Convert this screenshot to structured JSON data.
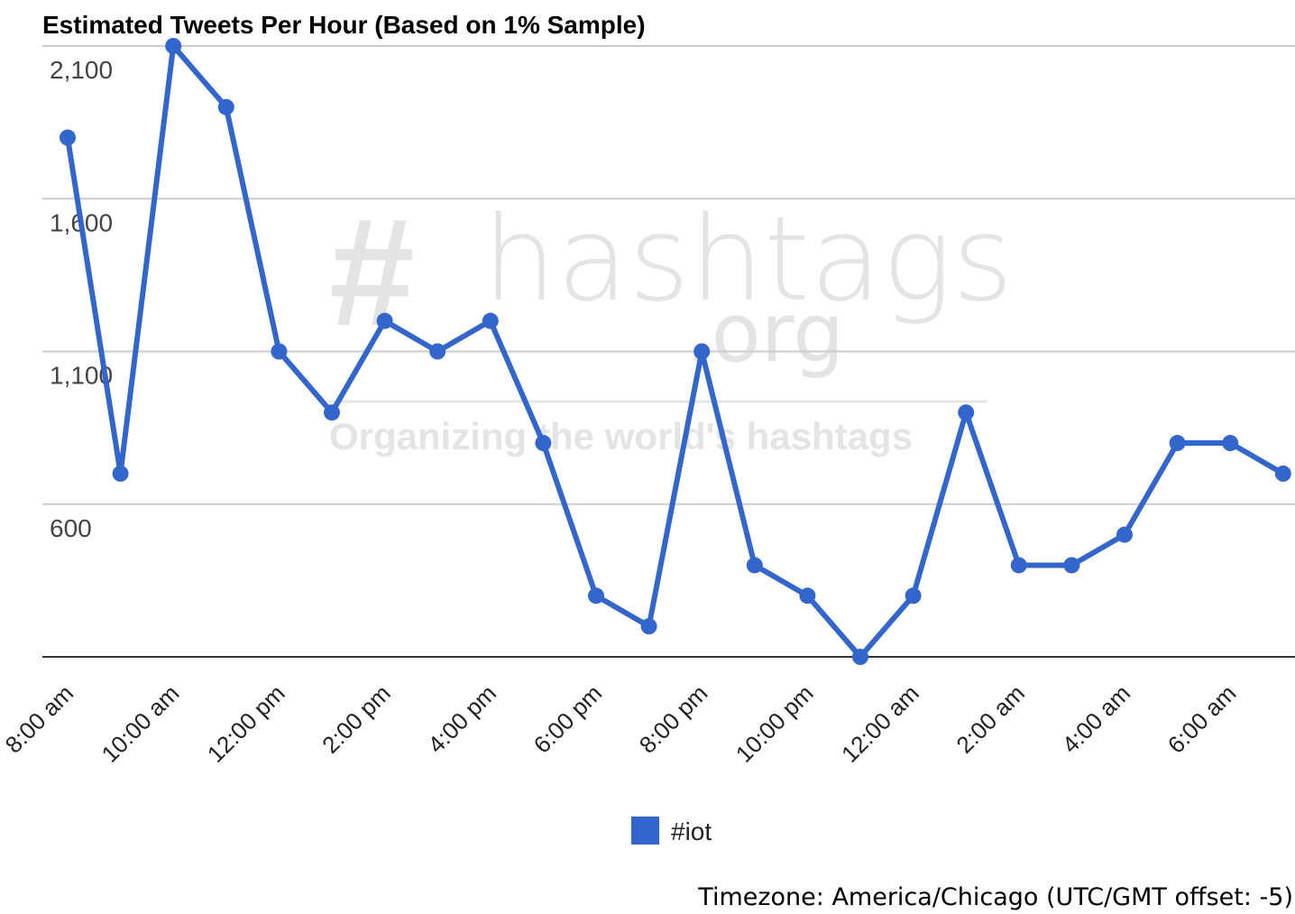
{
  "chart_data": {
    "type": "line",
    "title": "Estimated Tweets Per Hour (Based on 1% Sample)",
    "categories": [
      "8:00 am",
      null,
      "10:00 am",
      null,
      "12:00 pm",
      null,
      "2:00 pm",
      null,
      "4:00 pm",
      null,
      "6:00 pm",
      null,
      "8:00 pm",
      null,
      "10:00 pm",
      null,
      "12:00 am",
      null,
      "2:00 am",
      null,
      "4:00 am",
      null,
      "6:00 am",
      null
    ],
    "series": [
      {
        "name": "#iot",
        "color": "#3366cc",
        "values": [
          1800,
          700,
          2100,
          1900,
          1100,
          900,
          1200,
          1100,
          1200,
          800,
          300,
          200,
          1100,
          400,
          300,
          100,
          300,
          900,
          400,
          400,
          500,
          800,
          800,
          700
        ]
      }
    ],
    "ylim": [
      100,
      2100
    ],
    "yticks": [
      {
        "value": 600,
        "label": "600"
      },
      {
        "value": 1100,
        "label": "1,100"
      },
      {
        "value": 1600,
        "label": "1,600"
      },
      {
        "value": 2100,
        "label": "2,100"
      }
    ],
    "grid": true,
    "legend": "bottom",
    "watermark": [
      "#",
      "hashtags",
      ".org",
      "Organizing the world's hashtags"
    ],
    "footer": "Timezone: America/Chicago (UTC/GMT offset: -5)"
  }
}
